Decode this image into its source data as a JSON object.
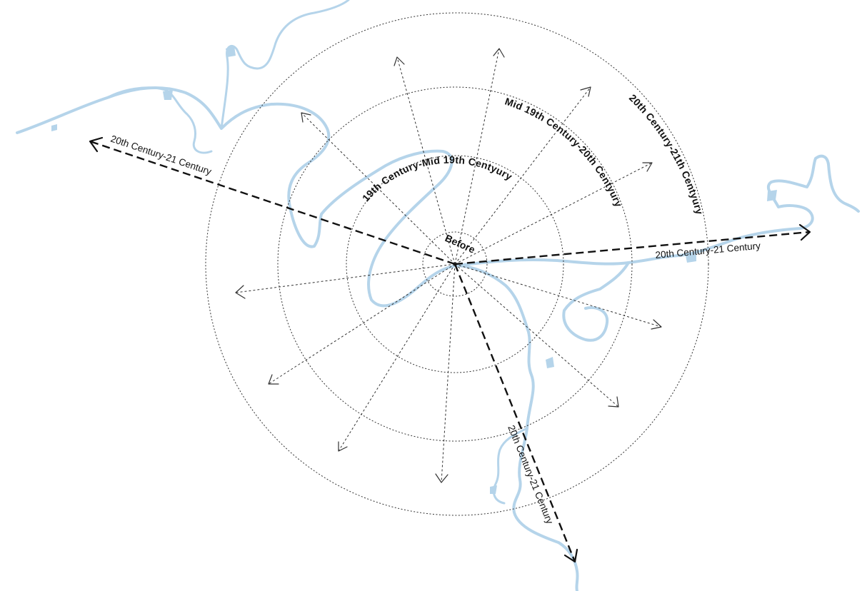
{
  "diagram": {
    "center_label": "Before",
    "ring_labels": [
      "19th Century-Mid 19th Centyury",
      "Mid 19th Century-20th Centyury",
      "20th Century-21th Centyury"
    ],
    "axis_labels": {
      "west": "20th Century-21 Century",
      "east": "20th Century-21 Century",
      "south": "20th Century-21 Century"
    },
    "colors": {
      "river": "#b5d4ea",
      "lines": "#333333",
      "major_lines": "#111111"
    }
  }
}
